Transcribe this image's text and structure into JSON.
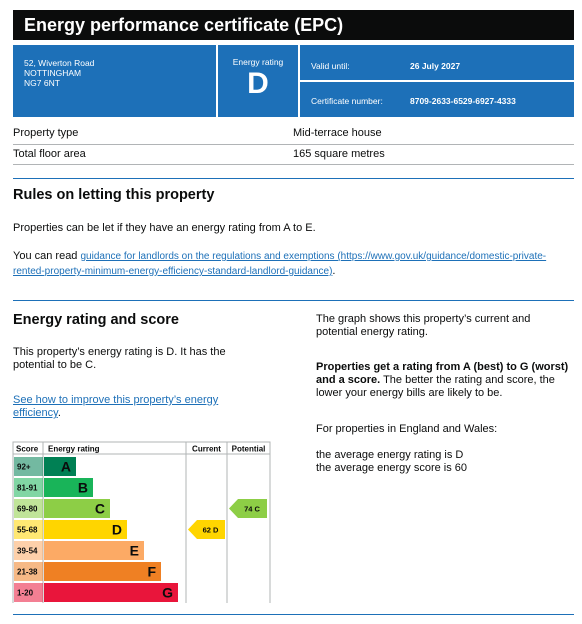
{
  "header": {
    "title": "Energy performance certificate (EPC)"
  },
  "summary": {
    "address": [
      "52, Wiverton Road",
      "NOTTINGHAM",
      "NG7 6NT"
    ],
    "rating_label": "Energy rating",
    "rating": "D",
    "valid_until_label": "Valid until:",
    "valid_until": "26 July 2027",
    "certificate_label": "Certificate number:",
    "certificate": "8709-2633-6529-6927-4333"
  },
  "property": {
    "rows": [
      [
        "Property type",
        "Mid-terrace house"
      ],
      [
        "Total floor area",
        "165 square metres"
      ]
    ]
  },
  "letting": {
    "heading": "Rules on letting this property",
    "text": "Properties can be let if they have an energy rating from A to E.",
    "link_intro": "You can read",
    "link": "guidance for landlords on the regulations and exemptions (https://www.gov.uk/guidance/domestic-private-rented-property-minimum-energy-efficiency-standard-landlord-guidance)",
    "link_end": "."
  },
  "rating_section": {
    "heading": "Energy rating and score",
    "text": "This property’s energy rating is D. It has the potential to be C.",
    "link": "See how to improve this property’s energy efficiency",
    "link_end": ".",
    "graph_note": "The graph shows this property’s current and potential energy rating.",
    "bold_note": "Properties get a rating from A (best) to G (worst) and a score.",
    "note": "The better the rating and score, the lower your energy bills are likely to be.",
    "region": "For properties in England and Wales:",
    "average_rating": "the average energy rating is D",
    "average_score": "the average energy score is 60"
  },
  "graph": {
    "headers": [
      "Score",
      "Energy rating",
      "Current",
      "Potential"
    ],
    "bands": [
      {
        "range": "92+",
        "letter": "A"
      },
      {
        "range": "81-91",
        "letter": "B"
      },
      {
        "range": "69-80",
        "letter": "C"
      },
      {
        "range": "55-68",
        "letter": "D"
      },
      {
        "range": "39-54",
        "letter": "E"
      },
      {
        "range": "21-38",
        "letter": "F"
      },
      {
        "range": "1-20",
        "letter": "G"
      }
    ],
    "current": {
      "score": 62,
      "letter": "D"
    },
    "potential": {
      "score": 74,
      "letter": "C"
    }
  }
}
